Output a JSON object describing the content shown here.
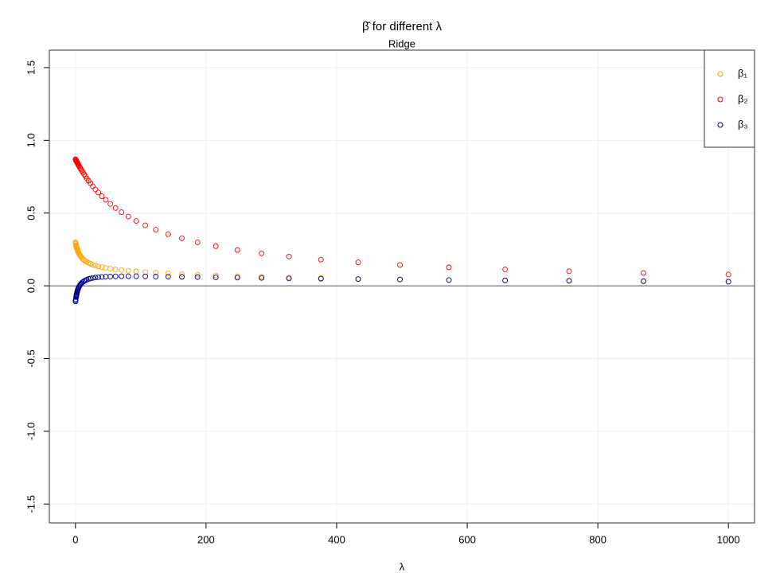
{
  "chart_data": {
    "type": "scatter",
    "title": "β̂ for different λ",
    "subtitle": "Ridge",
    "x_label": "λ",
    "x": [
      1000,
      870,
      756,
      658,
      572,
      497,
      433,
      376,
      327,
      285,
      248,
      215,
      187,
      163,
      142,
      123,
      107,
      93,
      81,
      70.5,
      61.4,
      53.4,
      46.4,
      40.4,
      35.1,
      30.6,
      26.6,
      23.1,
      20.1,
      17.5,
      15.2,
      13.2,
      11.5,
      10,
      8.7,
      7.6,
      6.6,
      5.7,
      5.0,
      4.3,
      3.8,
      3.3,
      2.8,
      2.5,
      2.1,
      1.9,
      1.6,
      1.4,
      1.2,
      1.0,
      0.5,
      0.2,
      0.05
    ],
    "series": [
      {
        "name": "β₁",
        "color": "#FFA500",
        "values": [
          0.027,
          0.03,
          0.033,
          0.037,
          0.04,
          0.044,
          0.048,
          0.053,
          0.057,
          0.062,
          0.066,
          0.071,
          0.076,
          0.08,
          0.085,
          0.09,
          0.094,
          0.099,
          0.104,
          0.109,
          0.113,
          0.118,
          0.123,
          0.128,
          0.133,
          0.139,
          0.145,
          0.151,
          0.157,
          0.164,
          0.17,
          0.177,
          0.184,
          0.191,
          0.198,
          0.205,
          0.212,
          0.219,
          0.225,
          0.232,
          0.237,
          0.243,
          0.25,
          0.254,
          0.26,
          0.263,
          0.268,
          0.271,
          0.275,
          0.279,
          0.289,
          0.295,
          0.299
        ]
      },
      {
        "name": "β₂",
        "color": "#FF0000",
        "values": [
          0.078,
          0.088,
          0.1,
          0.113,
          0.127,
          0.143,
          0.161,
          0.18,
          0.201,
          0.223,
          0.246,
          0.272,
          0.299,
          0.327,
          0.355,
          0.386,
          0.416,
          0.446,
          0.476,
          0.506,
          0.535,
          0.563,
          0.591,
          0.616,
          0.641,
          0.663,
          0.684,
          0.704,
          0.722,
          0.738,
          0.753,
          0.767,
          0.779,
          0.789,
          0.799,
          0.807,
          0.815,
          0.822,
          0.828,
          0.833,
          0.838,
          0.842,
          0.846,
          0.848,
          0.852,
          0.853,
          0.856,
          0.858,
          0.859,
          0.861,
          0.866,
          0.868,
          0.87
        ]
      },
      {
        "name": "β₃",
        "color": "#00008B",
        "values": [
          0.029,
          0.032,
          0.035,
          0.037,
          0.04,
          0.043,
          0.046,
          0.049,
          0.051,
          0.054,
          0.056,
          0.058,
          0.06,
          0.062,
          0.063,
          0.064,
          0.065,
          0.066,
          0.066,
          0.066,
          0.065,
          0.064,
          0.063,
          0.061,
          0.059,
          0.057,
          0.054,
          0.05,
          0.047,
          0.042,
          0.038,
          0.033,
          0.027,
          0.022,
          0.015,
          0.009,
          0.003,
          -0.005,
          -0.011,
          -0.018,
          -0.024,
          -0.031,
          -0.039,
          -0.044,
          -0.051,
          -0.058,
          -0.062,
          -0.067,
          -0.072,
          -0.077,
          -0.092,
          -0.102,
          -0.108
        ]
      }
    ],
    "xlim": [
      -40,
      1040
    ],
    "ylim": [
      -1.63,
      1.62
    ],
    "xticks": [
      0,
      200,
      400,
      600,
      800,
      1000
    ],
    "yticks": [
      -1.5,
      -1.0,
      -0.5,
      0.0,
      0.5,
      1.0,
      1.5
    ],
    "ytick_labels": [
      "-1.5",
      "-1.0",
      "-0.5",
      "0.0",
      "0.5",
      "1.0",
      "1.5"
    ],
    "hline": 0,
    "grid": true,
    "legend": "top-right"
  }
}
